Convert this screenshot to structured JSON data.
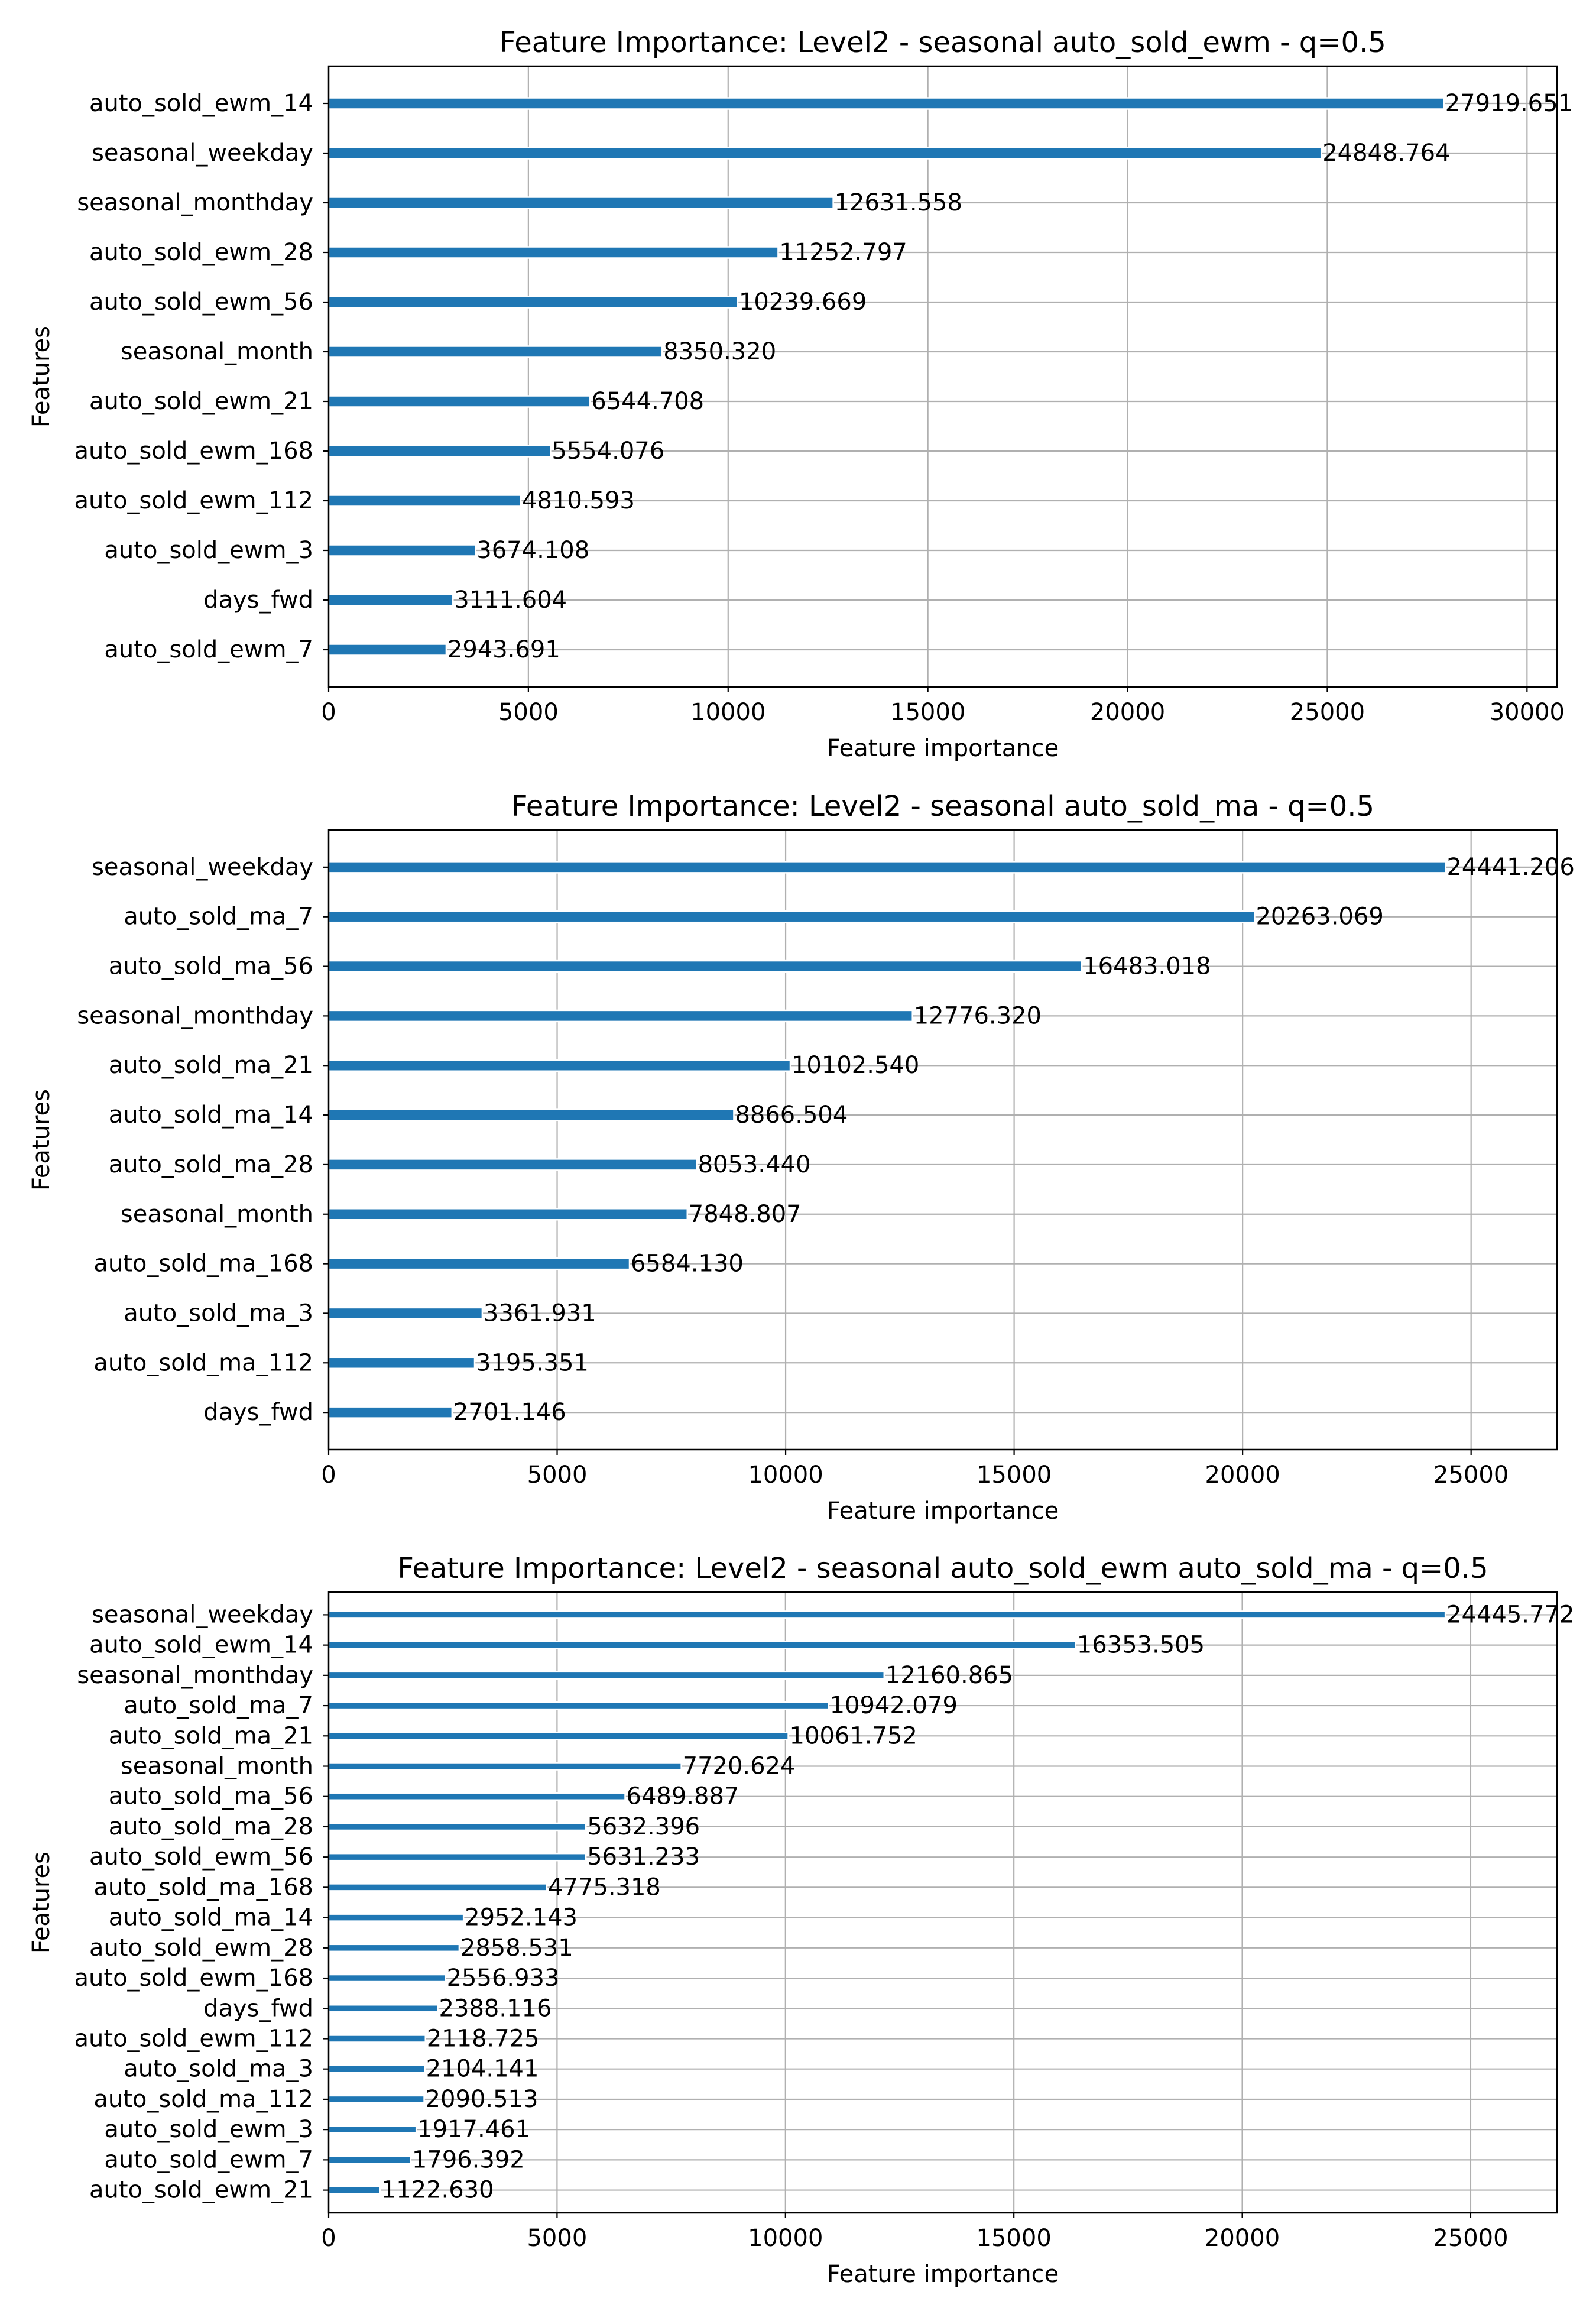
{
  "chart_data": [
    {
      "type": "bar",
      "orientation": "horizontal",
      "title": "Feature Importance: Level2 - seasonal auto_sold_ewm - q=0.5",
      "xlabel": "Feature importance",
      "ylabel": "Features",
      "xlim": [
        0,
        30750
      ],
      "xticks": [
        0,
        5000,
        10000,
        15000,
        20000,
        25000,
        30000
      ],
      "grid": true,
      "bar_color": "#1f77b4",
      "categories": [
        "auto_sold_ewm_14",
        "seasonal_weekday",
        "seasonal_monthday",
        "auto_sold_ewm_28",
        "auto_sold_ewm_56",
        "seasonal_month",
        "auto_sold_ewm_21",
        "auto_sold_ewm_168",
        "auto_sold_ewm_112",
        "auto_sold_ewm_3",
        "days_fwd",
        "auto_sold_ewm_7"
      ],
      "values": [
        27919.651,
        24848.764,
        12631.558,
        11252.797,
        10239.669,
        8350.32,
        6544.708,
        5554.076,
        4810.593,
        3674.108,
        3111.604,
        2943.691
      ],
      "labels": [
        "27919.651",
        "24848.764",
        "12631.558",
        "11252.797",
        "10239.669",
        "8350.320",
        "6544.708",
        "5554.076",
        "4810.593",
        "3674.108",
        "3111.604",
        "2943.691"
      ]
    },
    {
      "type": "bar",
      "orientation": "horizontal",
      "title": "Feature Importance: Level2 - seasonal auto_sold_ma - q=0.5",
      "xlabel": "Feature importance",
      "ylabel": "Features",
      "xlim": [
        0,
        26880
      ],
      "xticks": [
        0,
        5000,
        10000,
        15000,
        20000,
        25000
      ],
      "grid": true,
      "bar_color": "#1f77b4",
      "categories": [
        "seasonal_weekday",
        "auto_sold_ma_7",
        "auto_sold_ma_56",
        "seasonal_monthday",
        "auto_sold_ma_21",
        "auto_sold_ma_14",
        "auto_sold_ma_28",
        "seasonal_month",
        "auto_sold_ma_168",
        "auto_sold_ma_3",
        "auto_sold_ma_112",
        "days_fwd"
      ],
      "values": [
        24441.206,
        20263.069,
        16483.018,
        12776.32,
        10102.54,
        8866.504,
        8053.44,
        7848.807,
        6584.13,
        3361.931,
        3195.351,
        2701.146
      ],
      "labels": [
        "24441.206",
        "20263.069",
        "16483.018",
        "12776.320",
        "10102.540",
        "8866.504",
        "8053.440",
        "7848.807",
        "6584.130",
        "3361.931",
        "3195.351",
        "2701.146"
      ]
    },
    {
      "type": "bar",
      "orientation": "horizontal",
      "title": "Feature Importance: Level2 - seasonal auto_sold_ewm auto_sold_ma - q=0.5",
      "xlabel": "Feature importance",
      "ylabel": "Features",
      "xlim": [
        0,
        26890
      ],
      "xticks": [
        0,
        5000,
        10000,
        15000,
        20000,
        25000
      ],
      "grid": true,
      "bar_color": "#1f77b4",
      "categories": [
        "seasonal_weekday",
        "auto_sold_ewm_14",
        "seasonal_monthday",
        "auto_sold_ma_7",
        "auto_sold_ma_21",
        "seasonal_month",
        "auto_sold_ma_56",
        "auto_sold_ma_28",
        "auto_sold_ewm_56",
        "auto_sold_ma_168",
        "auto_sold_ma_14",
        "auto_sold_ewm_28",
        "auto_sold_ewm_168",
        "days_fwd",
        "auto_sold_ewm_112",
        "auto_sold_ma_3",
        "auto_sold_ma_112",
        "auto_sold_ewm_3",
        "auto_sold_ewm_7",
        "auto_sold_ewm_21"
      ],
      "values": [
        24445.772,
        16353.505,
        12160.865,
        10942.079,
        10061.752,
        7720.624,
        6489.887,
        5632.396,
        5631.233,
        4775.318,
        2952.143,
        2858.531,
        2556.933,
        2388.116,
        2118.725,
        2104.141,
        2090.513,
        1917.461,
        1796.392,
        1122.63
      ],
      "labels": [
        "24445.772",
        "16353.505",
        "12160.865",
        "10942.079",
        "10061.752",
        "7720.624",
        "6489.887",
        "5632.396",
        "5631.233",
        "4775.318",
        "2952.143",
        "2858.531",
        "2556.933",
        "2388.116",
        "2118.725",
        "2104.141",
        "2090.513",
        "1917.461",
        "1796.392",
        "1122.630"
      ]
    }
  ]
}
